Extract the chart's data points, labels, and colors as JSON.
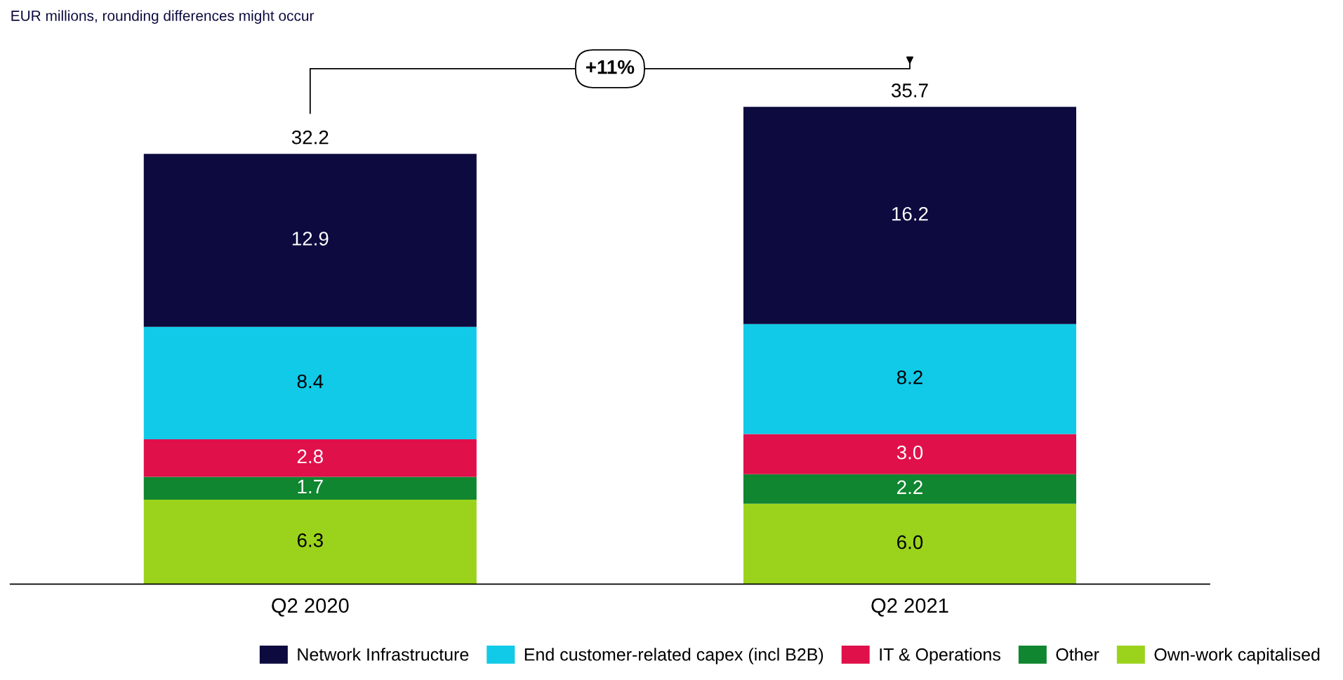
{
  "chart_data": {
    "type": "bar",
    "subtitle": "EUR millions, rounding differences might occur",
    "categories": [
      "Q2 2020",
      "Q2 2021"
    ],
    "stacked": true,
    "legend": "bottom",
    "series": [
      {
        "name": "Own-work capitalised",
        "color": "#9bd31c",
        "values": [
          6.3,
          6.0
        ],
        "value_labels": [
          "6.3",
          "6.0"
        ]
      },
      {
        "name": "Other",
        "color": "#0f862f",
        "values": [
          1.7,
          2.2
        ],
        "value_labels": [
          "1.7",
          "2.2"
        ]
      },
      {
        "name": "IT & Operations",
        "color": "#e0104b",
        "values": [
          2.8,
          3.0
        ],
        "value_labels": [
          "2.8",
          "3.0"
        ]
      },
      {
        "name": "End customer-related capex (incl B2B)",
        "color": "#10cae8",
        "values": [
          8.4,
          8.2
        ],
        "value_labels": [
          "8.4",
          "8.2"
        ]
      },
      {
        "name": "Network Infrastructure",
        "color": "#0c0a3e",
        "values": [
          12.9,
          16.2
        ],
        "value_labels": [
          "12.9",
          "16.2"
        ]
      }
    ],
    "totals": [
      "32.2",
      "35.7"
    ],
    "annotations": [
      "+11%"
    ]
  }
}
